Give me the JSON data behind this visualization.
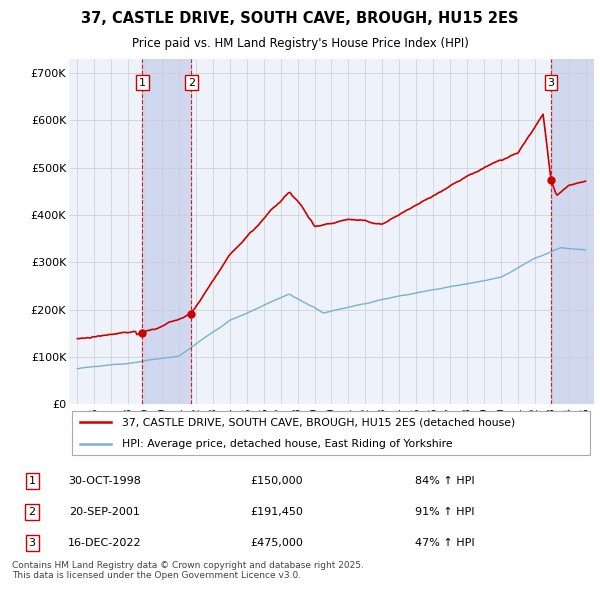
{
  "title": "37, CASTLE DRIVE, SOUTH CAVE, BROUGH, HU15 2ES",
  "subtitle": "Price paid vs. HM Land Registry's House Price Index (HPI)",
  "legend_line1": "37, CASTLE DRIVE, SOUTH CAVE, BROUGH, HU15 2ES (detached house)",
  "legend_line2": "HPI: Average price, detached house, East Riding of Yorkshire",
  "footer": "Contains HM Land Registry data © Crown copyright and database right 2025.\nThis data is licensed under the Open Government Licence v3.0.",
  "sales": [
    {
      "num": 1,
      "date": "30-OCT-1998",
      "price": 150000,
      "pct": "84%",
      "year": 1998.83
    },
    {
      "num": 2,
      "date": "20-SEP-2001",
      "price": 191450,
      "pct": "91%",
      "year": 2001.72
    },
    {
      "num": 3,
      "date": "16-DEC-2022",
      "price": 475000,
      "pct": "47%",
      "year": 2022.96
    }
  ],
  "xlim": [
    1994.5,
    2025.5
  ],
  "ylim": [
    0,
    730000
  ],
  "yticks": [
    0,
    100000,
    200000,
    300000,
    400000,
    500000,
    600000,
    700000
  ],
  "ytick_labels": [
    "£0",
    "£100K",
    "£200K",
    "£300K",
    "£400K",
    "£500K",
    "£600K",
    "£700K"
  ],
  "red_color": "#cc0000",
  "blue_color": "#7bafd4",
  "bg_color": "#eef2fa",
  "grid_color": "#cccccc",
  "sale_box_color": "#cc0000",
  "dashed_color": "#cc0000",
  "span_color": "#d0d8f0"
}
